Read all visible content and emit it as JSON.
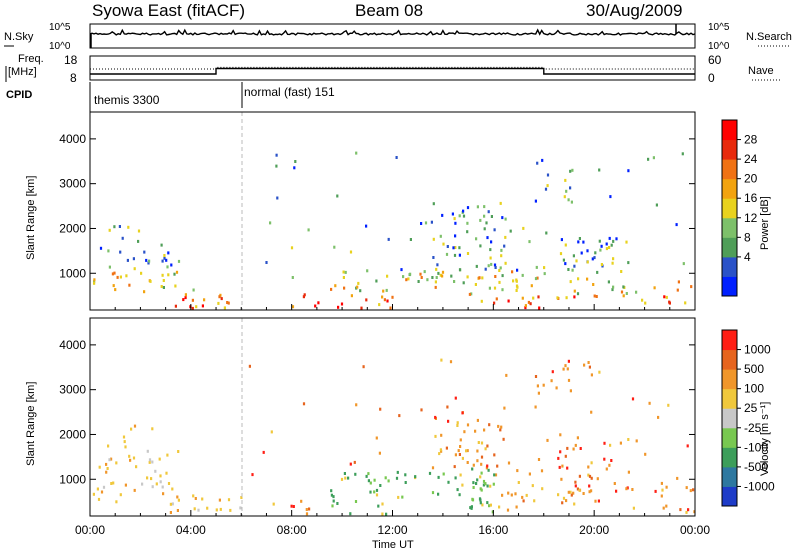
{
  "header": {
    "station": "Syowa East (fitACF)",
    "beam": "Beam 08",
    "date": "30/Aug/2009"
  },
  "noise_panel": {
    "left_label": "N.Sky",
    "right_label": "N.Search",
    "left_ticks": [
      "10^5",
      "10^0"
    ],
    "right_ticks": [
      "10^5",
      "10^0"
    ]
  },
  "freq_panel": {
    "left_label_line1": "Freq.",
    "left_label_line2": "[MHz]",
    "right_label": "Nave",
    "left_ticks": [
      "18",
      "8"
    ],
    "right_ticks": [
      "60",
      "0"
    ]
  },
  "cpid": {
    "label": "CPID",
    "segments": [
      {
        "name": "themis 3300",
        "start_h": 0,
        "end_h": 6
      },
      {
        "name": "normal (fast) 151",
        "start_h": 6,
        "end_h": 24
      }
    ]
  },
  "power_panel": {
    "ylabel": "Slant Range [km]",
    "yticks": [
      "4000",
      "3000",
      "2000",
      "1000"
    ],
    "colorbar_label": "Power [dB]",
    "colorbar_ticks": [
      "28",
      "24",
      "20",
      "16",
      "12",
      "8",
      "4"
    ],
    "colors": [
      "#0020ff",
      "#2a52c8",
      "#4f9e58",
      "#7dc06a",
      "#e8d21e",
      "#f2a30f",
      "#f07214",
      "#e82a0c",
      "#ff0000"
    ]
  },
  "velocity_panel": {
    "ylabel": "Slant Range [km]",
    "yticks": [
      "4000",
      "3000",
      "2000",
      "1000"
    ],
    "colorbar_label": "Velocity [m s⁻¹]",
    "colorbar_ticks": [
      "1000",
      "500",
      "100",
      "25",
      "-25",
      "-100",
      "-500",
      "-1000"
    ],
    "colors": [
      "#1e3cc8",
      "#2e78a0",
      "#3c9e5a",
      "#78c850",
      "#c8c8c8",
      "#f0c83c",
      "#f0962a",
      "#e6641e",
      "#ff1e14"
    ]
  },
  "x_axis": {
    "xlabel": "Time UT",
    "ticks": [
      "00:00",
      "04:00",
      "08:00",
      "12:00",
      "16:00",
      "20:00",
      "00:00"
    ]
  },
  "chart_data": [
    {
      "type": "line",
      "name": "N.Sky / N.Search noise",
      "x": [
        0,
        24
      ],
      "xlim": [
        0,
        24
      ],
      "yscale": "log",
      "ylim": [
        1,
        100000
      ]
    },
    {
      "type": "line",
      "name": "Frequency and Nave",
      "series": [
        {
          "name": "Freq.",
          "x": [
            0,
            5,
            5,
            18,
            18,
            24
          ],
          "values": [
            10.5,
            10.5,
            12.8,
            12.8,
            10.5,
            10.5
          ]
        },
        {
          "name": "Nave",
          "x": [
            0,
            5,
            5,
            18,
            18,
            24
          ],
          "values": [
            20,
            20,
            24,
            24,
            20,
            20
          ]
        }
      ],
      "ylim_left": [
        8,
        18
      ],
      "ylim_right": [
        0,
        60
      ]
    },
    {
      "type": "heatmap",
      "name": "Power",
      "xlabel": "Time UT",
      "ylabel": "Slant Range [km]",
      "xlim": [
        0,
        24
      ],
      "ylim": [
        180,
        4600
      ],
      "zlabel": "Power [dB]",
      "zlim": [
        0,
        32
      ],
      "zticks": [
        4,
        8,
        12,
        16,
        20,
        24,
        28
      ]
    },
    {
      "type": "heatmap",
      "name": "Velocity",
      "xlabel": "Time UT",
      "ylabel": "Slant Range [km]",
      "xlim": [
        0,
        24
      ],
      "ylim": [
        180,
        4600
      ],
      "zlabel": "Velocity [m s⁻¹]",
      "zticks": [
        1000,
        500,
        100,
        25,
        -25,
        -100,
        -500,
        -1000
      ]
    }
  ]
}
